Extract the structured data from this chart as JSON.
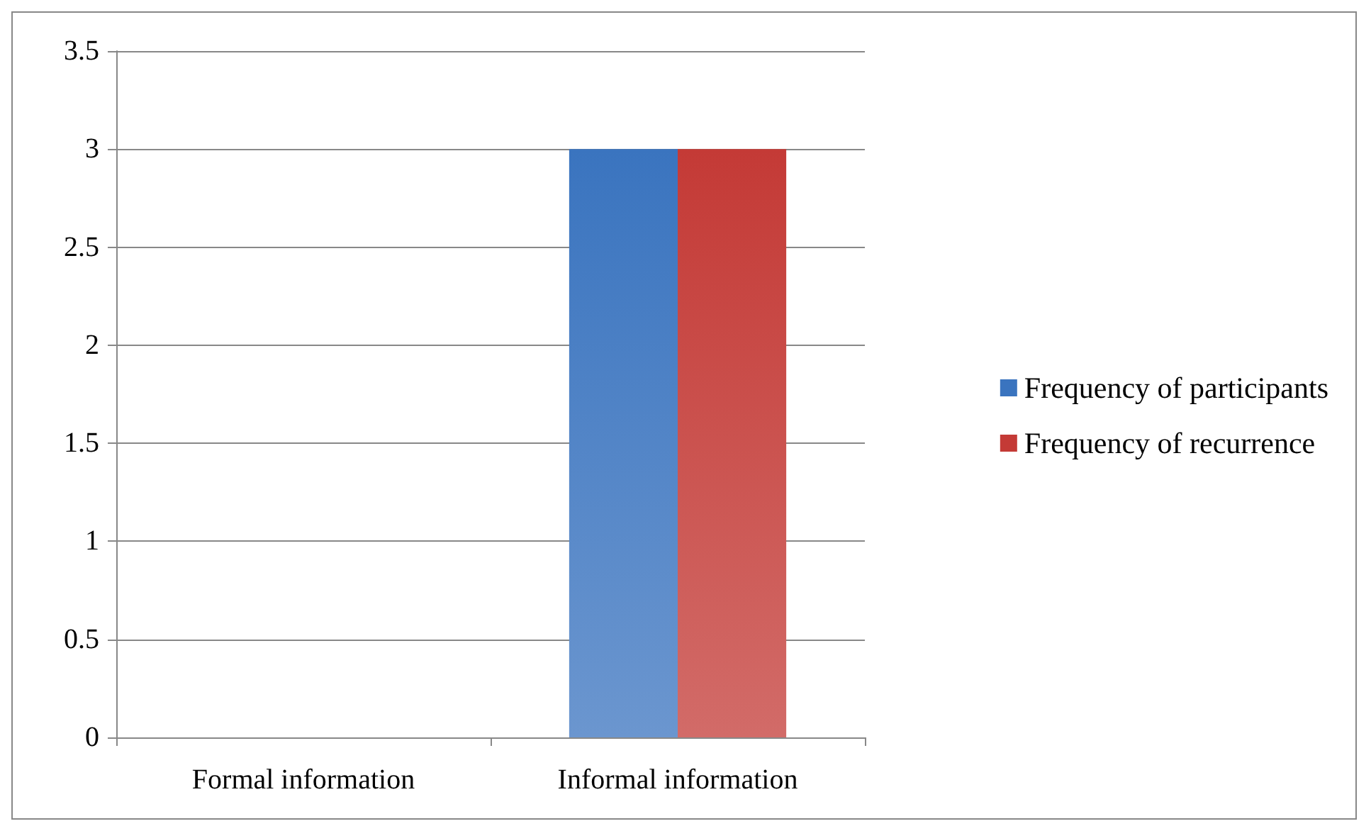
{
  "chart_data": {
    "type": "bar",
    "categories": [
      "Formal information",
      "Informal information"
    ],
    "series": [
      {
        "name": "Frequency of participants",
        "color": "#3a74bf",
        "values": [
          0,
          3
        ]
      },
      {
        "name": "Frequency of recurrence",
        "color": "#c43a36",
        "values": [
          0,
          3
        ]
      }
    ],
    "ylim": [
      0,
      3.5
    ],
    "yticks": [
      0,
      0.5,
      1,
      1.5,
      2,
      2.5,
      3,
      3.5
    ],
    "grid": "y",
    "legend": "right"
  }
}
